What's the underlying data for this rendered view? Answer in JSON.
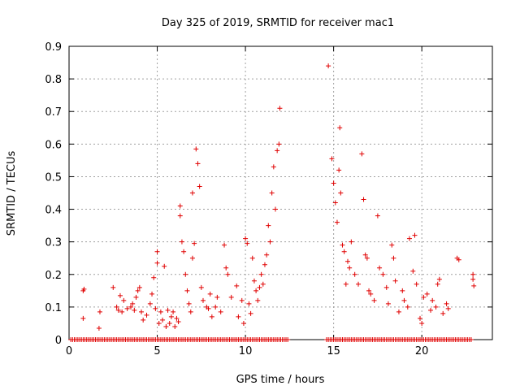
{
  "chart_data": {
    "type": "scatter",
    "title": "Day 325 of 2019, SRMTID for receiver mac1",
    "xlabel": "GPS time / hours",
    "ylabel": "SRMTID / TECUs",
    "xlim": [
      0,
      24
    ],
    "ylim": [
      0,
      0.9
    ],
    "xticks": [
      "0",
      "5",
      "10",
      "15",
      "20"
    ],
    "yticks": [
      "0",
      "0.1",
      "0.2",
      "0.3",
      "0.4",
      "0.5",
      "0.6",
      "0.7",
      "0.8",
      "0.9"
    ],
    "grid": true,
    "marker": "plus",
    "color": "#e00000",
    "series": [
      {
        "name": "mac1",
        "points": [
          [
            0.8,
            0.065
          ],
          [
            0.8,
            0.15
          ],
          [
            0.85,
            0.155
          ],
          [
            1.7,
            0.035
          ],
          [
            1.75,
            0.085
          ],
          [
            2.5,
            0.16
          ],
          [
            2.7,
            0.1
          ],
          [
            2.8,
            0.09
          ],
          [
            2.9,
            0.135
          ],
          [
            3.0,
            0.085
          ],
          [
            3.1,
            0.12
          ],
          [
            3.3,
            0.095
          ],
          [
            3.5,
            0.1
          ],
          [
            3.6,
            0.11
          ],
          [
            3.7,
            0.09
          ],
          [
            3.8,
            0.13
          ],
          [
            3.9,
            0.15
          ],
          [
            4.0,
            0.16
          ],
          [
            4.1,
            0.085
          ],
          [
            4.2,
            0.06
          ],
          [
            4.4,
            0.075
          ],
          [
            4.6,
            0.11
          ],
          [
            4.7,
            0.14
          ],
          [
            4.8,
            0.19
          ],
          [
            4.9,
            0.095
          ],
          [
            5.0,
            0.27
          ],
          [
            5.0,
            0.235
          ],
          [
            5.1,
            0.05
          ],
          [
            5.2,
            0.085
          ],
          [
            5.3,
            0.06
          ],
          [
            5.4,
            0.225
          ],
          [
            5.5,
            0.04
          ],
          [
            5.6,
            0.09
          ],
          [
            5.7,
            0.05
          ],
          [
            5.8,
            0.07
          ],
          [
            5.9,
            0.085
          ],
          [
            6.0,
            0.04
          ],
          [
            6.1,
            0.065
          ],
          [
            6.2,
            0.055
          ],
          [
            6.3,
            0.38
          ],
          [
            6.3,
            0.41
          ],
          [
            6.4,
            0.3
          ],
          [
            6.5,
            0.27
          ],
          [
            6.6,
            0.2
          ],
          [
            6.7,
            0.15
          ],
          [
            6.8,
            0.11
          ],
          [
            6.9,
            0.085
          ],
          [
            7.0,
            0.45
          ],
          [
            7.0,
            0.25
          ],
          [
            7.1,
            0.295
          ],
          [
            7.2,
            0.585
          ],
          [
            7.3,
            0.54
          ],
          [
            7.4,
            0.47
          ],
          [
            7.5,
            0.16
          ],
          [
            7.6,
            0.12
          ],
          [
            7.8,
            0.1
          ],
          [
            7.9,
            0.095
          ],
          [
            8.0,
            0.14
          ],
          [
            8.1,
            0.07
          ],
          [
            8.3,
            0.1
          ],
          [
            8.4,
            0.13
          ],
          [
            8.6,
            0.085
          ],
          [
            8.8,
            0.29
          ],
          [
            8.9,
            0.22
          ],
          [
            9.0,
            0.2
          ],
          [
            9.2,
            0.13
          ],
          [
            9.5,
            0.165
          ],
          [
            9.6,
            0.07
          ],
          [
            9.8,
            0.12
          ],
          [
            9.9,
            0.05
          ],
          [
            10.0,
            0.31
          ],
          [
            10.1,
            0.295
          ],
          [
            10.2,
            0.11
          ],
          [
            10.3,
            0.08
          ],
          [
            10.4,
            0.25
          ],
          [
            10.5,
            0.18
          ],
          [
            10.6,
            0.15
          ],
          [
            10.7,
            0.12
          ],
          [
            10.8,
            0.16
          ],
          [
            10.9,
            0.2
          ],
          [
            11.0,
            0.17
          ],
          [
            11.1,
            0.23
          ],
          [
            11.2,
            0.26
          ],
          [
            11.3,
            0.35
          ],
          [
            11.4,
            0.3
          ],
          [
            11.5,
            0.45
          ],
          [
            11.6,
            0.53
          ],
          [
            11.7,
            0.4
          ],
          [
            11.8,
            0.58
          ],
          [
            11.9,
            0.6
          ],
          [
            11.95,
            0.71
          ],
          [
            14.7,
            0.84
          ],
          [
            14.9,
            0.555
          ],
          [
            15.0,
            0.48
          ],
          [
            15.1,
            0.42
          ],
          [
            15.2,
            0.36
          ],
          [
            15.3,
            0.52
          ],
          [
            15.35,
            0.65
          ],
          [
            15.4,
            0.45
          ],
          [
            15.5,
            0.29
          ],
          [
            15.6,
            0.27
          ],
          [
            15.7,
            0.17
          ],
          [
            15.8,
            0.24
          ],
          [
            15.9,
            0.22
          ],
          [
            16.0,
            0.3
          ],
          [
            16.2,
            0.2
          ],
          [
            16.4,
            0.17
          ],
          [
            16.6,
            0.57
          ],
          [
            16.7,
            0.43
          ],
          [
            16.8,
            0.26
          ],
          [
            16.9,
            0.25
          ],
          [
            17.0,
            0.15
          ],
          [
            17.1,
            0.14
          ],
          [
            17.3,
            0.12
          ],
          [
            17.5,
            0.38
          ],
          [
            17.6,
            0.22
          ],
          [
            17.8,
            0.2
          ],
          [
            18.0,
            0.16
          ],
          [
            18.1,
            0.11
          ],
          [
            18.3,
            0.29
          ],
          [
            18.4,
            0.25
          ],
          [
            18.5,
            0.18
          ],
          [
            18.7,
            0.085
          ],
          [
            18.9,
            0.15
          ],
          [
            19.0,
            0.12
          ],
          [
            19.2,
            0.1
          ],
          [
            19.3,
            0.31
          ],
          [
            19.5,
            0.21
          ],
          [
            19.6,
            0.32
          ],
          [
            19.7,
            0.17
          ],
          [
            19.9,
            0.065
          ],
          [
            20.0,
            0.05
          ],
          [
            20.1,
            0.13
          ],
          [
            20.3,
            0.14
          ],
          [
            20.5,
            0.09
          ],
          [
            20.6,
            0.12
          ],
          [
            20.8,
            0.1
          ],
          [
            20.9,
            0.17
          ],
          [
            21.0,
            0.185
          ],
          [
            21.2,
            0.08
          ],
          [
            21.4,
            0.11
          ],
          [
            21.5,
            0.095
          ],
          [
            22.0,
            0.25
          ],
          [
            22.1,
            0.245
          ],
          [
            22.9,
            0.2
          ],
          [
            22.9,
            0.185
          ],
          [
            22.95,
            0.165
          ]
        ],
        "zero_segments": [
          [
            0.1,
            12.4
          ],
          [
            14.6,
            22.8
          ]
        ]
      }
    ]
  }
}
